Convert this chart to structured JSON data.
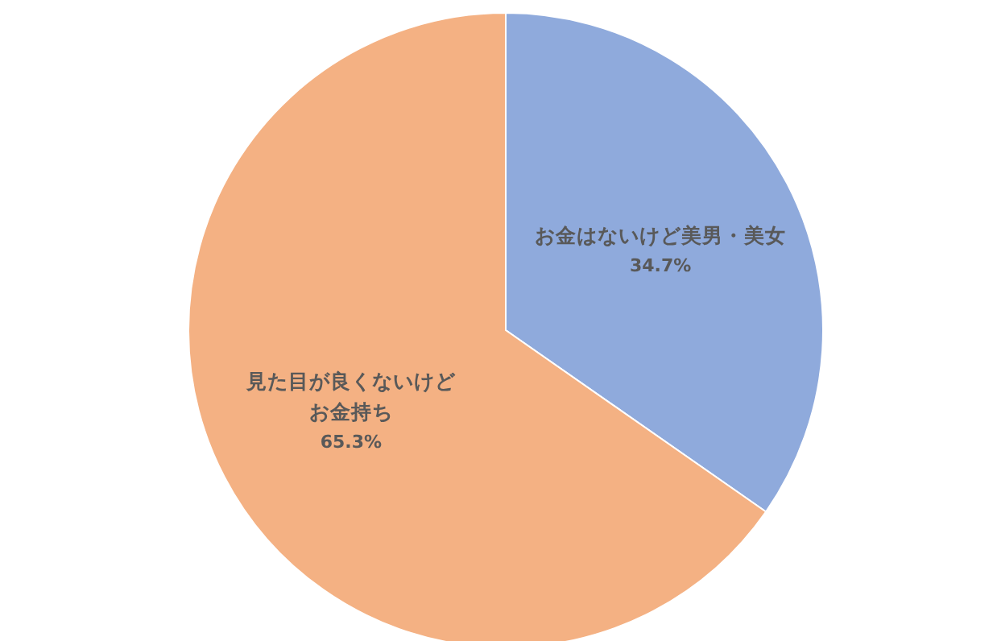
{
  "chart_data": {
    "type": "pie",
    "categories": [
      "お金はないけど美男・美女",
      "見た目が良くないけどお金持ち"
    ],
    "values": [
      34.7,
      65.3
    ],
    "colors": [
      "#8faadc",
      "#f4b183"
    ],
    "value_labels": [
      "34.7%",
      "65.3%"
    ],
    "legend": false
  }
}
